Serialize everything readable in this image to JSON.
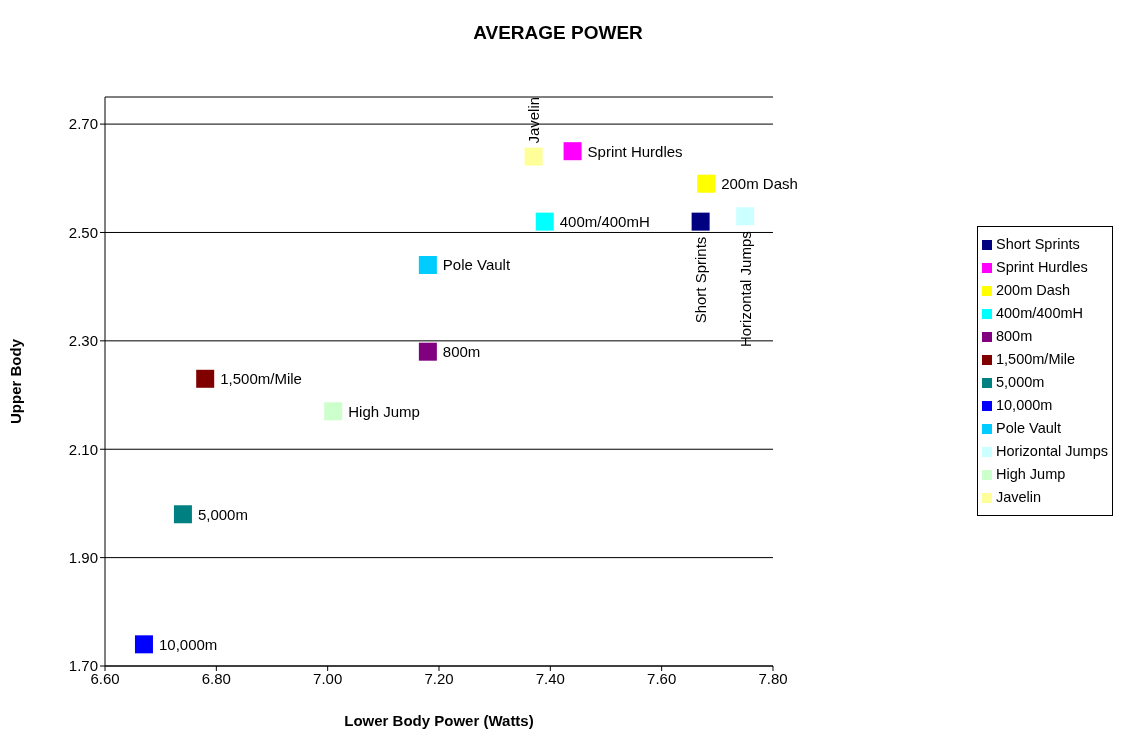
{
  "chart_data": {
    "type": "scatter",
    "title": "AVERAGE POWER",
    "xlabel": "Lower Body Power (Watts)",
    "ylabel": "Upper Body",
    "xlim": [
      6.6,
      7.8
    ],
    "ylim": [
      1.7,
      2.75
    ],
    "xticks": [
      {
        "value": 6.6,
        "label": "6.60"
      },
      {
        "value": 6.8,
        "label": "6.80"
      },
      {
        "value": 7.0,
        "label": "7.00"
      },
      {
        "value": 7.2,
        "label": "7.20"
      },
      {
        "value": 7.4,
        "label": "7.40"
      },
      {
        "value": 7.6,
        "label": "7.60"
      },
      {
        "value": 7.8,
        "label": "7.80"
      }
    ],
    "yticks": [
      {
        "value": 1.7,
        "label": "1.70"
      },
      {
        "value": 1.9,
        "label": "1.90"
      },
      {
        "value": 2.1,
        "label": "2.10"
      },
      {
        "value": 2.3,
        "label": "2.30"
      },
      {
        "value": 2.5,
        "label": "2.50"
      },
      {
        "value": 2.7,
        "label": "2.70"
      }
    ],
    "grid": "y",
    "legend": "right",
    "marker": "square",
    "series": [
      {
        "name": "Short Sprints",
        "color": "#000080",
        "x": [
          7.67
        ],
        "values": [
          2.52
        ]
      },
      {
        "name": "Sprint Hurdles",
        "color": "#ff00ff",
        "x": [
          7.44
        ],
        "values": [
          2.65
        ]
      },
      {
        "name": "200m Dash",
        "color": "#ffff00",
        "x": [
          7.68
        ],
        "values": [
          2.59
        ]
      },
      {
        "name": "400m/400mH",
        "color": "#00ffff",
        "x": [
          7.39
        ],
        "values": [
          2.52
        ]
      },
      {
        "name": "800m",
        "color": "#800080",
        "x": [
          7.18
        ],
        "values": [
          2.28
        ]
      },
      {
        "name": "1,500m/Mile",
        "color": "#800000",
        "x": [
          6.78
        ],
        "values": [
          2.23
        ]
      },
      {
        "name": "5,000m",
        "color": "#008080",
        "x": [
          6.74
        ],
        "values": [
          1.98
        ]
      },
      {
        "name": "10,000m",
        "color": "#0000ff",
        "x": [
          6.67
        ],
        "values": [
          1.74
        ]
      },
      {
        "name": "Pole Vault",
        "color": "#00ccff",
        "x": [
          7.18
        ],
        "values": [
          2.44
        ]
      },
      {
        "name": "Horizontal Jumps",
        "color": "#ccffff",
        "x": [
          7.75
        ],
        "values": [
          2.53
        ]
      },
      {
        "name": "High Jump",
        "color": "#ccffcc",
        "x": [
          7.01
        ],
        "values": [
          2.17
        ]
      },
      {
        "name": "Javelin",
        "color": "#ffff99",
        "x": [
          7.37
        ],
        "values": [
          2.64
        ]
      }
    ]
  }
}
